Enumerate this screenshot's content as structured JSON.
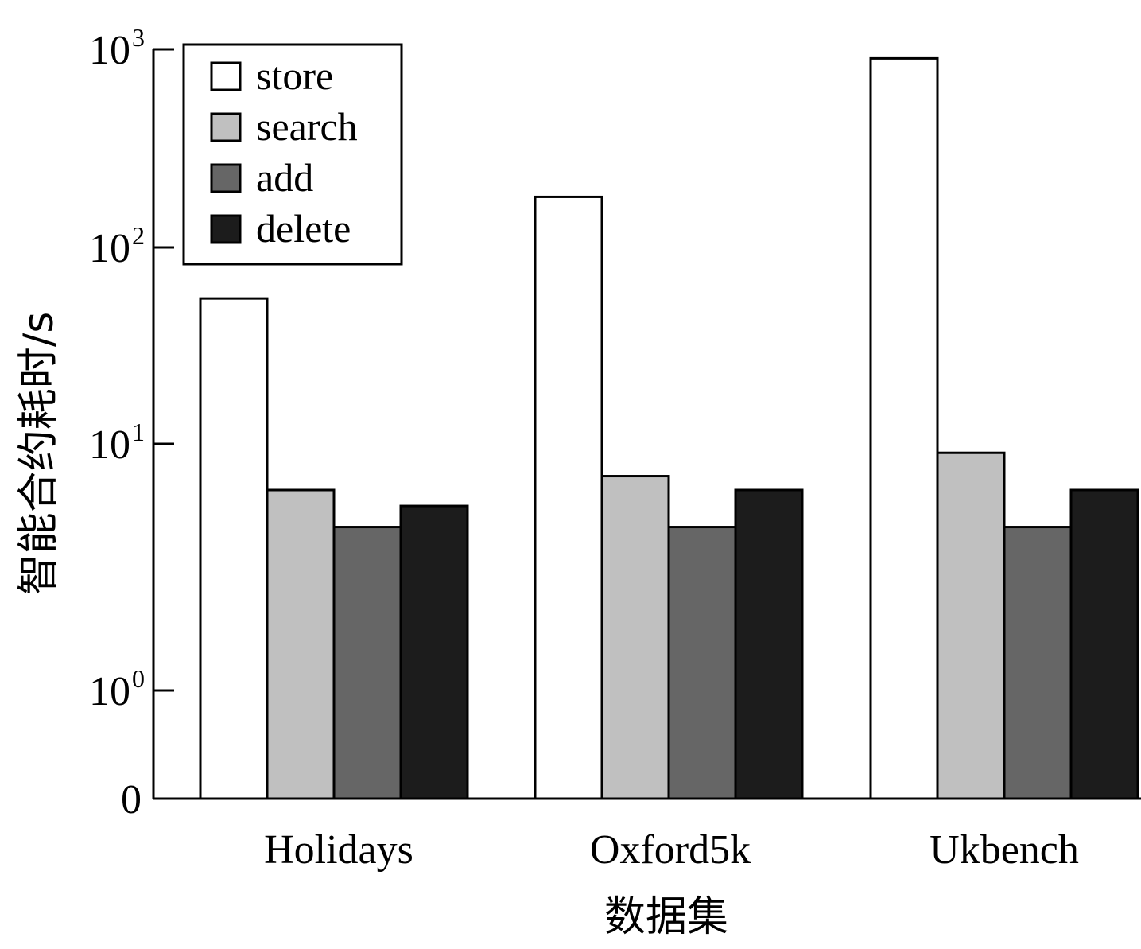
{
  "chart_data": {
    "type": "bar",
    "xlabel": "数据集",
    "ylabel": "智能合约耗时/s",
    "categories": [
      "Holidays",
      "Oxford5k",
      "Ukbench"
    ],
    "series": [
      {
        "name": "store",
        "values": [
          55,
          180,
          900
        ],
        "color": "#ffffff"
      },
      {
        "name": "search",
        "values": [
          6.5,
          7.4,
          9.2
        ],
        "color": "#c0c0c0"
      },
      {
        "name": "add",
        "values": [
          4.6,
          4.6,
          4.6
        ],
        "color": "#666666"
      },
      {
        "name": "delete",
        "values": [
          5.6,
          6.5,
          6.5
        ],
        "color": "#1c1c1c"
      }
    ],
    "y_scale": "log (axis break between 0 and 10^0)",
    "ylim": [
      0,
      1000
    ],
    "yticks": [
      {
        "value": 1000,
        "base": "10",
        "exp": "3"
      },
      {
        "value": 100,
        "base": "10",
        "exp": "2"
      },
      {
        "value": 10,
        "base": "10",
        "exp": "1"
      },
      {
        "value": 1,
        "base": "10",
        "exp": "0"
      },
      {
        "value": 0,
        "base": "0",
        "exp": ""
      }
    ],
    "legend_position": "top-left",
    "grid": false
  }
}
